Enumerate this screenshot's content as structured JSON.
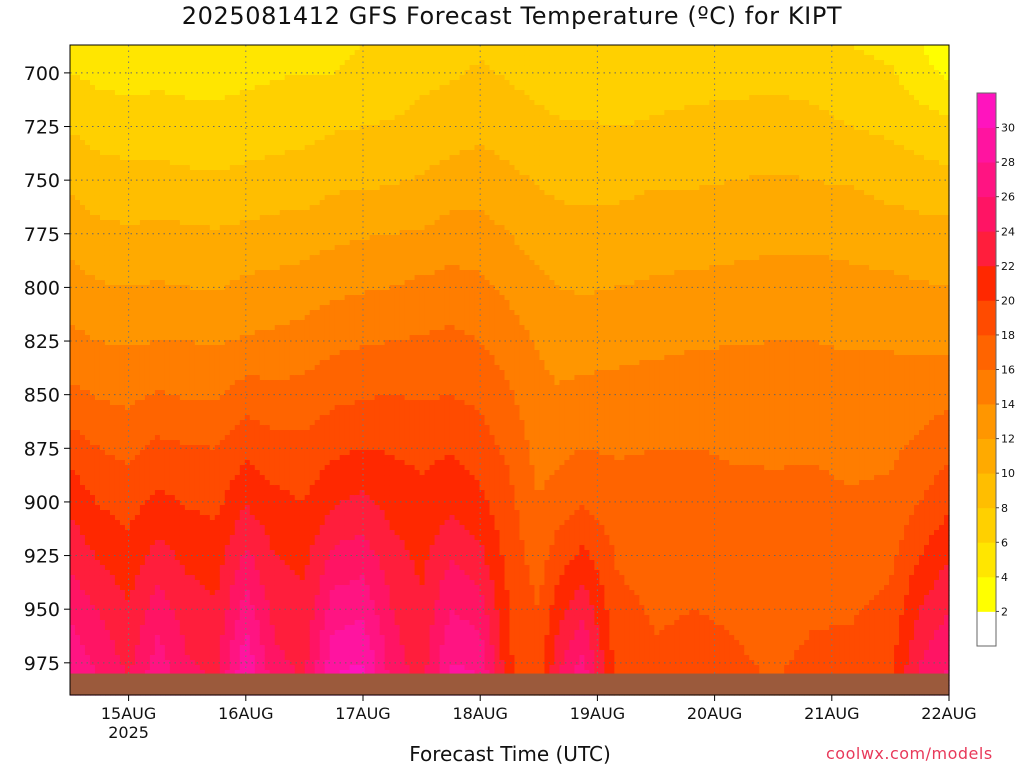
{
  "chart_data": {
    "type": "heatmap",
    "title": "2025081412 GFS Forecast Temperature (ºC) for KIPT",
    "xlabel": "Forecast Time (UTC)",
    "ylabel": "",
    "credit": "coolwx.com/models",
    "x_range_hours": [
      0,
      180
    ],
    "x_ticks": [
      {
        "hour": 12,
        "label": "15AUG",
        "sublabel": "2025"
      },
      {
        "hour": 36,
        "label": "16AUG",
        "sublabel": ""
      },
      {
        "hour": 60,
        "label": "17AUG",
        "sublabel": ""
      },
      {
        "hour": 84,
        "label": "18AUG",
        "sublabel": ""
      },
      {
        "hour": 108,
        "label": "19AUG",
        "sublabel": ""
      },
      {
        "hour": 132,
        "label": "20AUG",
        "sublabel": ""
      },
      {
        "hour": 156,
        "label": "21AUG",
        "sublabel": ""
      },
      {
        "hour": 180,
        "label": "22AUG",
        "sublabel": ""
      }
    ],
    "y_range_hpa": [
      687,
      990
    ],
    "y_ticks": [
      "700",
      "725",
      "750",
      "775",
      "800",
      "825",
      "850",
      "875",
      "900",
      "925",
      "950",
      "975"
    ],
    "surface_pressure_hpa": 980,
    "grid": true,
    "colorbar": {
      "placement": "right",
      "levels": [
        0,
        2,
        4,
        6,
        8,
        10,
        12,
        14,
        16,
        18,
        20,
        22,
        24,
        26,
        28,
        30,
        32
      ],
      "labels": [
        "2",
        "4",
        "6",
        "8",
        "10",
        "12",
        "14",
        "16",
        "18",
        "20",
        "22",
        "24",
        "26",
        "28",
        "30"
      ],
      "colors": [
        "#ffffff",
        "#ffff00",
        "#ffe600",
        "#ffd000",
        "#ffbe00",
        "#ffaa00",
        "#ff9600",
        "#ff7d00",
        "#ff6400",
        "#ff4b00",
        "#ff2800",
        "#ff1e3c",
        "#ff1464",
        "#ff1482",
        "#ff14a0",
        "#ff14be"
      ]
    },
    "profile_levels_hpa": [
      687,
      700,
      725,
      750,
      775,
      800,
      825,
      850,
      875,
      900,
      925,
      950,
      975,
      990
    ],
    "series": [
      {
        "x": 0,
        "values": [
          5.0,
          6.0,
          7.8,
          9.6,
          11.2,
          12.8,
          14.5,
          16.5,
          19.0,
          21.5,
          23.5,
          25.5,
          27.5,
          29.0
        ]
      },
      {
        "x": 6,
        "values": [
          4.5,
          5.5,
          7.2,
          8.8,
          10.5,
          12.2,
          14.0,
          15.8,
          18.0,
          19.8,
          21.8,
          23.8,
          25.5,
          26.5
        ]
      },
      {
        "x": 12,
        "values": [
          4.5,
          5.2,
          7.0,
          8.6,
          10.3,
          12.0,
          13.8,
          15.5,
          17.5,
          19.2,
          20.8,
          22.2,
          23.5,
          24.0
        ]
      },
      {
        "x": 18,
        "values": [
          5.0,
          5.5,
          7.0,
          8.6,
          10.5,
          12.2,
          14.0,
          16.2,
          18.5,
          20.5,
          22.8,
          25.0,
          27.0,
          28.5
        ]
      },
      {
        "x": 24,
        "values": [
          4.8,
          5.3,
          6.8,
          8.4,
          10.4,
          12.0,
          14.0,
          15.8,
          18.2,
          19.8,
          21.5,
          23.0,
          24.2,
          25.0
        ]
      },
      {
        "x": 30,
        "values": [
          4.8,
          5.2,
          6.8,
          8.2,
          10.2,
          11.8,
          13.8,
          15.8,
          18.0,
          19.5,
          21.0,
          22.3,
          23.5,
          24.2
        ]
      },
      {
        "x": 36,
        "values": [
          5.0,
          5.5,
          7.0,
          8.5,
          10.5,
          12.5,
          14.2,
          17.0,
          19.5,
          21.8,
          24.5,
          27.0,
          29.5,
          31.0
        ]
      },
      {
        "x": 42,
        "values": [
          5.5,
          5.8,
          7.2,
          8.7,
          10.8,
          12.6,
          14.5,
          16.5,
          18.8,
          20.5,
          22.0,
          23.2,
          24.5,
          25.2
        ]
      },
      {
        "x": 48,
        "values": [
          5.8,
          6.0,
          7.5,
          8.8,
          11.0,
          13.0,
          14.8,
          16.8,
          18.5,
          20.0,
          21.5,
          22.5,
          23.5,
          24.2
        ]
      },
      {
        "x": 54,
        "values": [
          5.5,
          6.0,
          7.8,
          9.5,
          11.5,
          13.5,
          15.5,
          17.5,
          19.5,
          21.8,
          24.5,
          27.0,
          29.5,
          30.8
        ]
      },
      {
        "x": 60,
        "values": [
          6.0,
          6.5,
          8.0,
          9.6,
          11.8,
          13.8,
          15.8,
          17.8,
          20.0,
          22.5,
          25.0,
          27.5,
          30.0,
          31.5
        ]
      },
      {
        "x": 66,
        "values": [
          6.5,
          6.8,
          8.2,
          9.8,
          12.0,
          14.0,
          16.0,
          18.0,
          19.8,
          21.2,
          22.8,
          24.0,
          25.0,
          25.5
        ]
      },
      {
        "x": 72,
        "values": [
          7.0,
          7.5,
          8.6,
          10.2,
          12.2,
          14.5,
          16.2,
          17.8,
          19.5,
          20.5,
          21.5,
          22.3,
          23.0,
          23.5
        ]
      },
      {
        "x": 78,
        "values": [
          7.2,
          7.8,
          9.0,
          10.8,
          12.8,
          14.8,
          16.5,
          18.0,
          19.8,
          21.5,
          23.8,
          26.0,
          28.0,
          29.5
        ]
      },
      {
        "x": 84,
        "values": [
          7.8,
          8.2,
          9.5,
          11.0,
          12.8,
          14.5,
          16.0,
          17.5,
          19.0,
          20.5,
          22.5,
          25.0,
          27.5,
          28.8
        ]
      },
      {
        "x": 90,
        "values": [
          7.5,
          7.8,
          9.0,
          10.5,
          12.0,
          13.5,
          15.0,
          16.2,
          17.5,
          18.5,
          19.2,
          19.8,
          20.2,
          20.5
        ]
      },
      {
        "x": 96,
        "values": [
          7.0,
          7.3,
          8.5,
          9.8,
          11.0,
          12.5,
          13.8,
          14.5,
          15.2,
          16.0,
          17.0,
          18.0,
          18.8,
          19.2
        ]
      },
      {
        "x": 100,
        "values": [
          6.8,
          7.0,
          8.2,
          9.5,
          10.8,
          12.0,
          13.2,
          14.2,
          15.5,
          17.0,
          19.0,
          21.2,
          23.5,
          24.8
        ]
      },
      {
        "x": 105,
        "values": [
          6.8,
          7.0,
          8.2,
          9.5,
          10.5,
          11.8,
          13.2,
          14.5,
          16.0,
          17.8,
          20.5,
          23.5,
          26.5,
          28.2
        ]
      },
      {
        "x": 112,
        "values": [
          6.5,
          6.8,
          8.0,
          9.5,
          10.6,
          12.0,
          13.5,
          14.5,
          15.8,
          16.8,
          17.8,
          18.5,
          19.2,
          19.5
        ]
      },
      {
        "x": 120,
        "values": [
          6.8,
          7.2,
          8.2,
          9.8,
          11.0,
          12.3,
          13.6,
          14.8,
          16.0,
          16.8,
          17.2,
          17.8,
          18.2,
          18.5
        ]
      },
      {
        "x": 128,
        "values": [
          7.0,
          7.3,
          8.5,
          9.8,
          11.0,
          12.5,
          13.8,
          15.0,
          16.0,
          16.8,
          17.5,
          18.0,
          18.5,
          18.8
        ]
      },
      {
        "x": 136,
        "values": [
          7.0,
          7.4,
          8.6,
          10.0,
          11.3,
          12.6,
          13.9,
          15.0,
          15.8,
          16.5,
          17.2,
          17.8,
          18.2,
          18.5
        ]
      },
      {
        "x": 144,
        "values": [
          7.0,
          7.5,
          8.8,
          10.2,
          11.5,
          12.8,
          14.0,
          15.0,
          15.8,
          16.3,
          16.8,
          17.3,
          17.8,
          18.0
        ]
      },
      {
        "x": 152,
        "values": [
          6.8,
          7.2,
          8.6,
          10.0,
          11.5,
          12.8,
          14.0,
          15.0,
          15.8,
          16.5,
          17.2,
          17.8,
          18.3,
          18.6
        ]
      },
      {
        "x": 160,
        "values": [
          6.0,
          6.6,
          8.0,
          9.8,
          11.3,
          12.6,
          13.8,
          14.8,
          15.5,
          16.2,
          17.0,
          17.8,
          18.5,
          18.8
        ]
      },
      {
        "x": 168,
        "values": [
          5.5,
          6.2,
          7.6,
          9.2,
          11.0,
          12.4,
          13.8,
          14.8,
          15.6,
          16.5,
          17.5,
          18.5,
          19.5,
          20.0
        ]
      },
      {
        "x": 174,
        "values": [
          4.2,
          4.8,
          7.0,
          8.8,
          10.8,
          12.2,
          13.6,
          15.0,
          16.5,
          18.0,
          20.0,
          22.0,
          24.0,
          25.0
        ]
      },
      {
        "x": 180,
        "values": [
          2.5,
          3.5,
          6.5,
          8.6,
          10.6,
          12.0,
          13.5,
          15.5,
          17.5,
          19.5,
          21.8,
          24.0,
          26.0,
          27.0
        ]
      }
    ]
  }
}
